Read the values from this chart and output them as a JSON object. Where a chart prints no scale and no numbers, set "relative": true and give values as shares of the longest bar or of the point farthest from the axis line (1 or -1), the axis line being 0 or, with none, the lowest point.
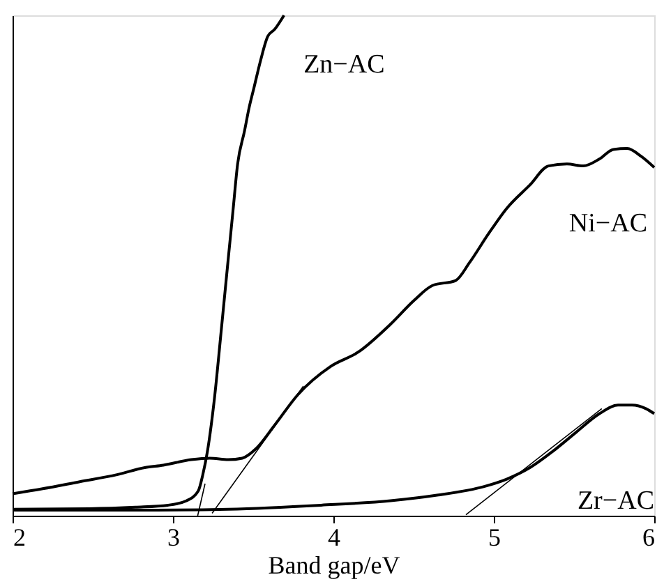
{
  "chart_data": {
    "type": "line",
    "xlabel": "Band gap/eV",
    "relative": true,
    "xlim": [
      2,
      6
    ],
    "xticks": [
      2,
      3,
      4,
      5,
      6
    ],
    "tick_labels": "x",
    "grid": false,
    "marker": "none",
    "line_style": "solid",
    "series": [
      {
        "name": "Zn−AC",
        "color": "#000000",
        "x": [
          2.0,
          2.477,
          2.766,
          2.969,
          3.085,
          3.157,
          3.186,
          3.215,
          3.258,
          3.302,
          3.345,
          3.374,
          3.403,
          3.446,
          3.475,
          3.504,
          3.547,
          3.591,
          3.634,
          3.692
        ],
        "values": [
          0.013,
          0.014,
          0.017,
          0.021,
          0.03,
          0.049,
          0.082,
          0.129,
          0.233,
          0.374,
          0.515,
          0.609,
          0.703,
          0.769,
          0.816,
          0.854,
          0.911,
          0.958,
          0.972,
          1.0
        ]
      },
      {
        "name": "Ni−AC",
        "color": "#000000",
        "x": [
          2.0,
          2.188,
          2.419,
          2.651,
          2.824,
          2.94,
          3.114,
          3.229,
          3.345,
          3.432,
          3.518,
          3.634,
          3.779,
          3.981,
          4.155,
          4.357,
          4.502,
          4.617,
          4.762,
          4.849,
          4.964,
          5.08,
          5.225,
          5.341,
          5.456,
          5.557,
          5.659,
          5.745,
          5.832,
          5.919,
          6.0
        ],
        "values": [
          0.044,
          0.054,
          0.068,
          0.082,
          0.096,
          0.101,
          0.112,
          0.115,
          0.112,
          0.115,
          0.134,
          0.181,
          0.242,
          0.298,
          0.327,
          0.383,
          0.43,
          0.46,
          0.47,
          0.506,
          0.562,
          0.614,
          0.661,
          0.699,
          0.703,
          0.699,
          0.713,
          0.732,
          0.734,
          0.718,
          0.696
        ]
      },
      {
        "name": "Zr−AC",
        "color": "#000000",
        "x": [
          2.0,
          2.766,
          3.345,
          3.923,
          4.357,
          4.646,
          4.936,
          5.08,
          5.225,
          5.369,
          5.514,
          5.659,
          5.774,
          5.861,
          5.948,
          6.0
        ],
        "values": [
          0.011,
          0.011,
          0.013,
          0.021,
          0.03,
          0.041,
          0.058,
          0.073,
          0.096,
          0.129,
          0.167,
          0.204,
          0.221,
          0.221,
          0.214,
          0.204
        ]
      },
      {
        "color": "#000000",
        "x": [
          3.154,
          3.2
        ],
        "values": [
          0.0,
          0.064
        ]
      },
      {
        "color": "#000000",
        "x": [
          3.244,
          3.813
        ],
        "values": [
          0.005,
          0.259
        ]
      },
      {
        "color": "#000000",
        "x": [
          4.826,
          5.673
        ],
        "values": [
          0.002,
          0.214
        ]
      }
    ]
  }
}
